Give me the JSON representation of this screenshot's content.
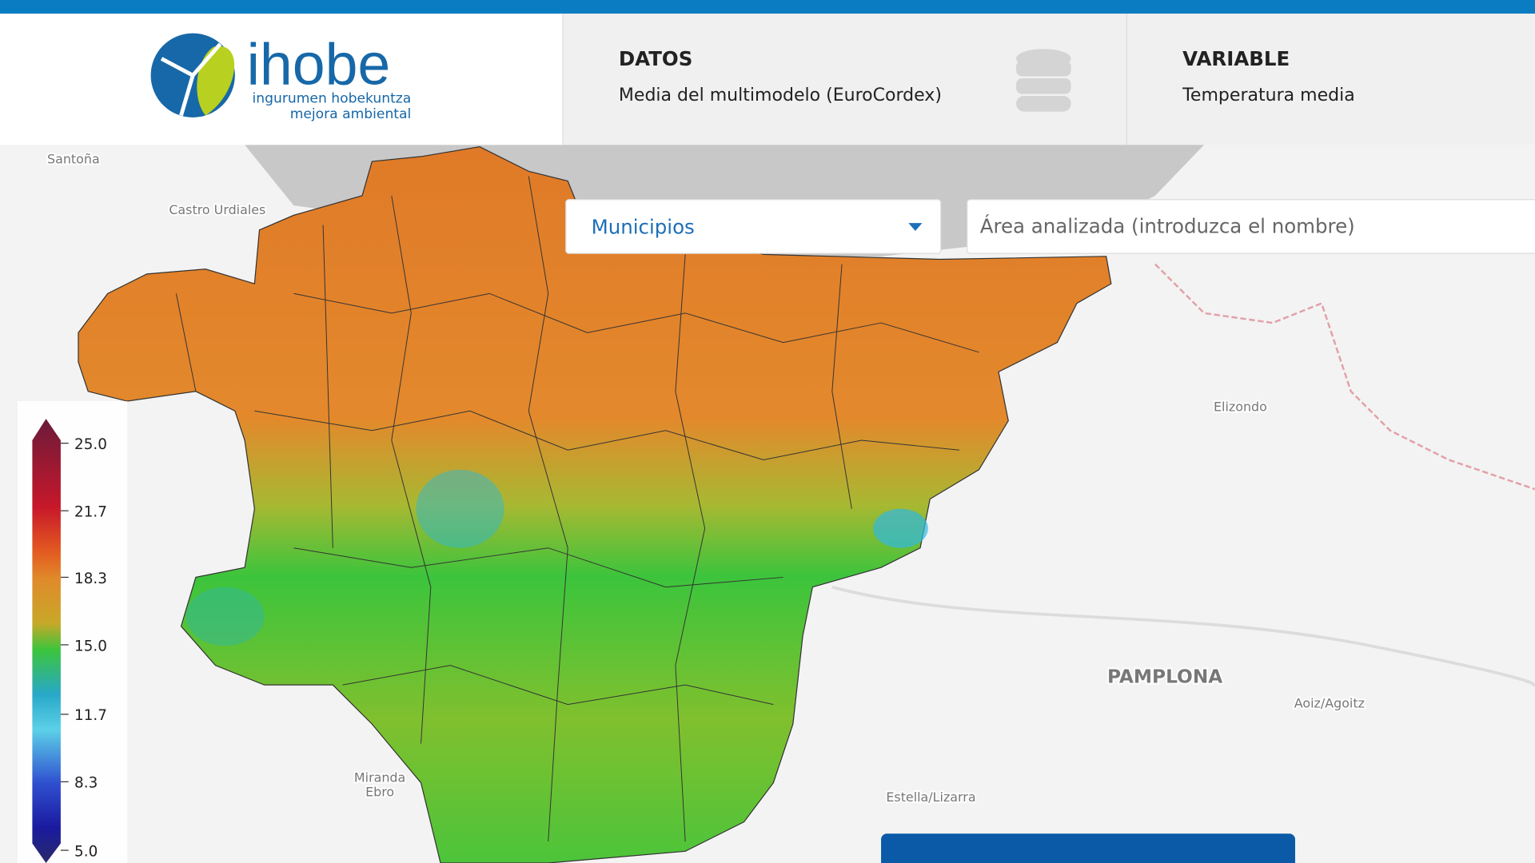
{
  "header": {
    "logo": {
      "name": "ihobe",
      "tagline_1": "ingurumen hobekuntza",
      "tagline_2": "mejora ambiental"
    },
    "datos": {
      "label": "DATOS",
      "value": "Media del multimodelo (EuroCordex)"
    },
    "variable": {
      "label": "VARIABLE",
      "value": "Temperatura media"
    }
  },
  "controls": {
    "area_type": "Municipios",
    "search_placeholder": "Área analizada (introduzca el nombre)"
  },
  "legend": {
    "ticks": [
      "25.0",
      "21.7",
      "18.3",
      "15.0",
      "11.7",
      "8.3",
      "5.0"
    ]
  },
  "map_labels": [
    "Santoña",
    "Castro Urdiales",
    "Elizondo",
    "PAMPLONA",
    "Aoiz/Agoitz",
    "Miranda",
    "Ebro",
    "Estella/Lizarra"
  ]
}
